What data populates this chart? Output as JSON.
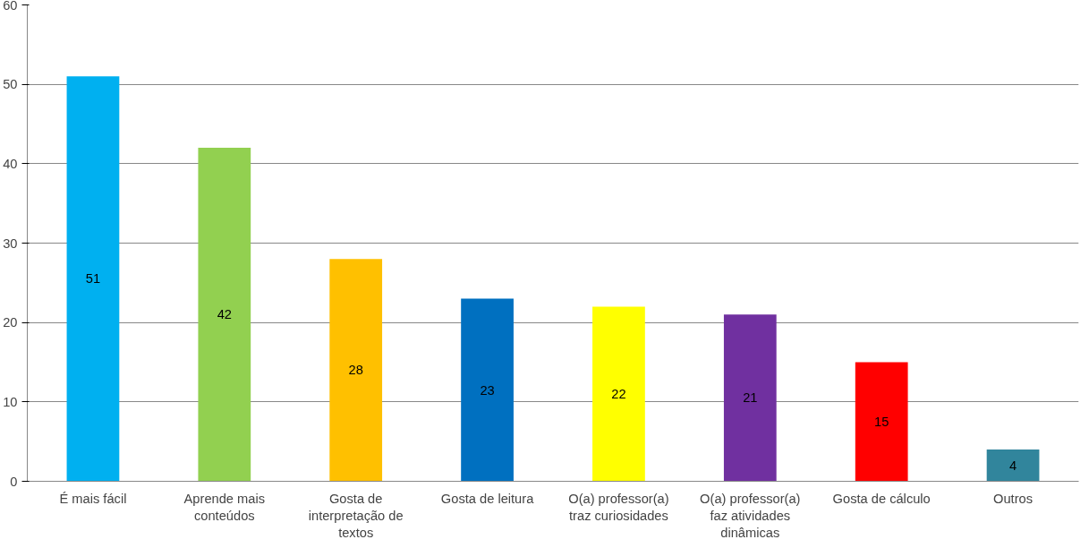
{
  "chart_data": {
    "type": "bar",
    "categories": [
      "É mais fácil",
      "Aprende mais conteúdos",
      "Gosta de interpretação de textos",
      "Gosta de leitura",
      "O(a) professor(a) traz curiosidades",
      "O(a) professor(a) faz atividades dinâmicas",
      "Gosta de cálculo",
      "Outros"
    ],
    "values": [
      51,
      42,
      28,
      23,
      22,
      21,
      15,
      4
    ],
    "colors": [
      "#00b0f0",
      "#92d050",
      "#ffc000",
      "#0070c0",
      "#ffff00",
      "#7030a0",
      "#ff0000",
      "#31859c"
    ],
    "ylim": [
      0,
      60
    ],
    "yticks": [
      0,
      10,
      20,
      30,
      40,
      50,
      60
    ],
    "grid": "y",
    "data_labels": true
  }
}
